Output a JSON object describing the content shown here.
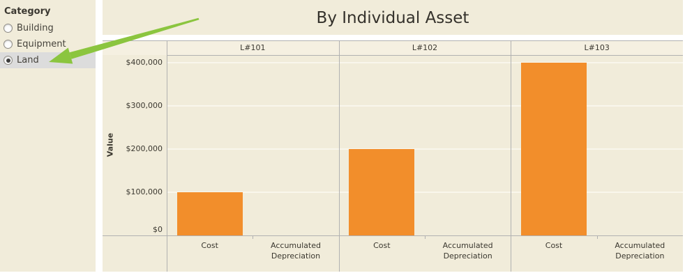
{
  "theme": {
    "panel_background": "#f1ecda",
    "selected_row_background": "#dcdcdc",
    "line_color": "#b1b1b1",
    "gridline_color": "#f9f6ec"
  },
  "sidebar": {
    "title": "Category",
    "options": [
      {
        "label": "Building",
        "selected": false
      },
      {
        "label": "Equipment",
        "selected": false
      },
      {
        "label": "Land",
        "selected": true
      }
    ]
  },
  "annotation_arrow": {
    "color": "#8bc53f",
    "points_to": "Land option"
  },
  "chart_data": {
    "type": "bar",
    "title": "By Individual Asset",
    "ylabel": "Value",
    "xlabel": "",
    "panels": [
      "L#101",
      "L#102",
      "L#103"
    ],
    "categories": [
      "Cost",
      "Accumulated Depreciation"
    ],
    "values": [
      [
        100000,
        null
      ],
      [
        200000,
        null
      ],
      [
        400000,
        null
      ]
    ],
    "series_note": "one bar per panel: Cost only; no Accumulated Depreciation bars shown for Land",
    "yticks": [
      {
        "label": "$0",
        "value": 0
      },
      {
        "label": "$100,000",
        "value": 100000
      },
      {
        "label": "$200,000",
        "value": 200000
      },
      {
        "label": "$300,000",
        "value": 300000
      },
      {
        "label": "$400,000",
        "value": 400000
      }
    ],
    "ylim": [
      0,
      420000
    ],
    "grid": true,
    "legend": "none",
    "bar_color": "#f28e2b"
  }
}
